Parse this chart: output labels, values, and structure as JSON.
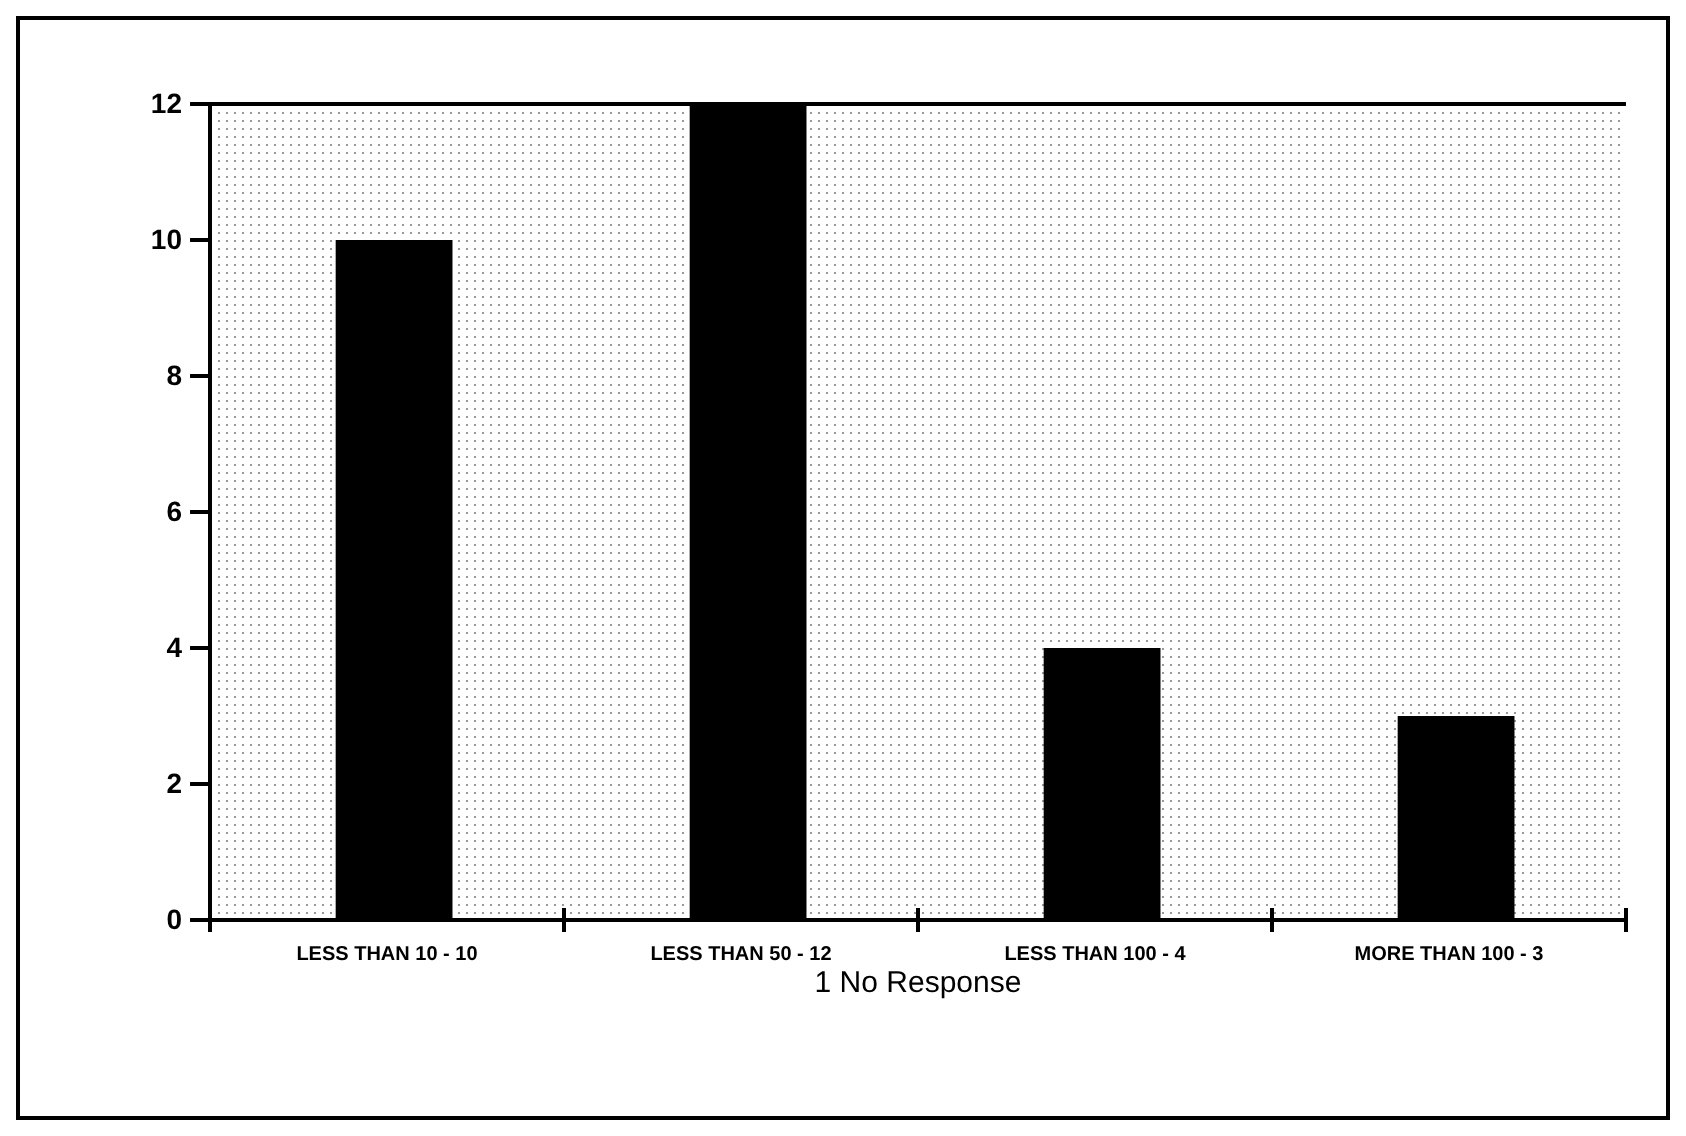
{
  "chart_data": {
    "type": "bar",
    "xlabel": "1 No Response",
    "categories": [
      "LESS THAN 10 - 10",
      "LESS THAN 50 - 12",
      "LESS THAN 100 - 4",
      "MORE THAN 100 - 3"
    ],
    "values": [
      10,
      12,
      4,
      3
    ],
    "color": "#000000",
    "ylim": [
      0,
      12
    ],
    "yticks": [
      0,
      2,
      4,
      6,
      8,
      10,
      12
    ]
  }
}
